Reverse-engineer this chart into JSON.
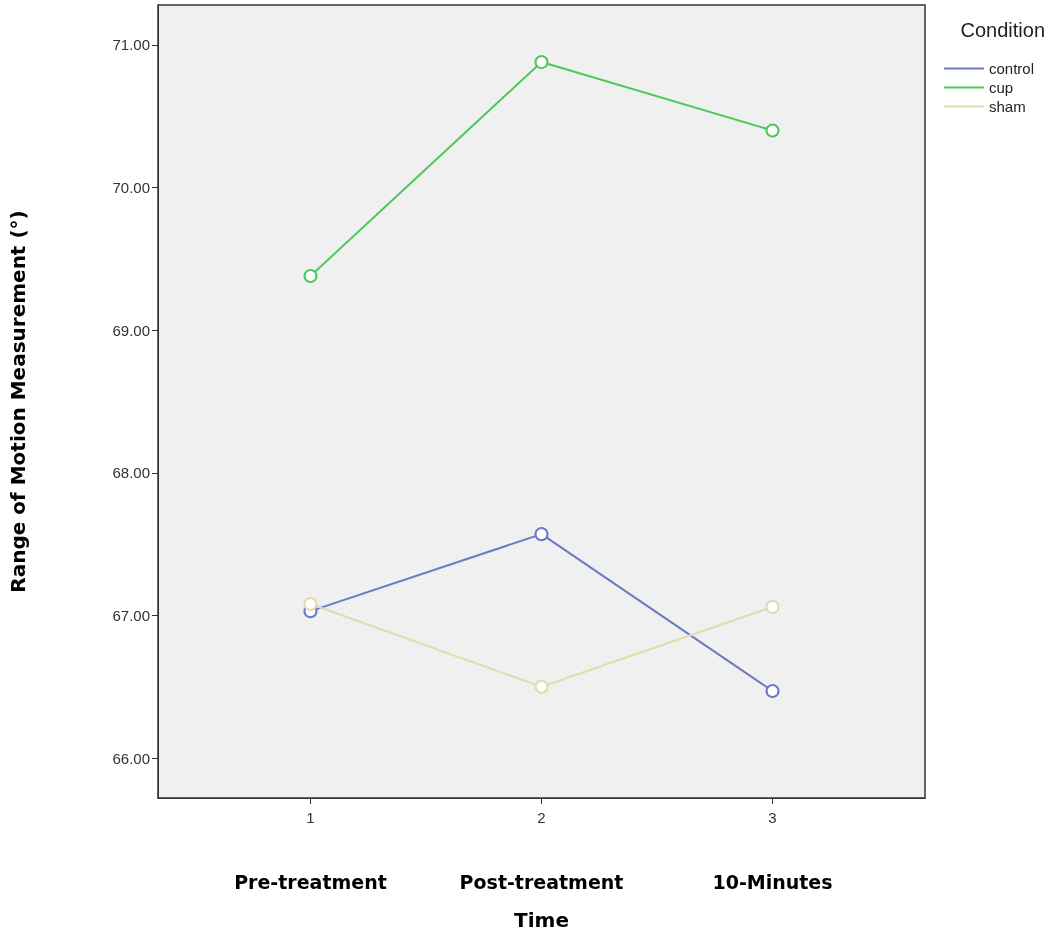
{
  "chart_data": {
    "type": "line",
    "xlabel": "Time",
    "ylabel": "Range of Motion Measurement (°)",
    "legend_title": "Condition",
    "x": [
      1,
      2,
      3
    ],
    "series": [
      {
        "name": "control",
        "color": "#6a79c4",
        "values": [
          67.03,
          67.57,
          66.47
        ]
      },
      {
        "name": "cup",
        "color": "#4dc85c",
        "values": [
          69.38,
          70.88,
          70.4
        ]
      },
      {
        "name": "sham",
        "color": "#e2dbab",
        "values": [
          67.08,
          66.5,
          67.06
        ]
      }
    ],
    "xlim": [
      0.34,
      3.66
    ],
    "xticks": [
      1,
      2,
      3
    ],
    "ylim": [
      65.72,
      71.28
    ],
    "yticks": [
      {
        "value": 66,
        "label": "66.00"
      },
      {
        "value": 67,
        "label": "67.00"
      },
      {
        "value": 68,
        "label": "68.00"
      },
      {
        "value": 69,
        "label": "69.00"
      },
      {
        "value": 70,
        "label": "70.00"
      },
      {
        "value": 71,
        "label": "71.00"
      }
    ],
    "annotations": [
      "Pre-treatment",
      "Post-treatment",
      "10-Minutes"
    ],
    "marker": "circle",
    "line_style": "solid",
    "grid": false,
    "legend": "top right"
  }
}
